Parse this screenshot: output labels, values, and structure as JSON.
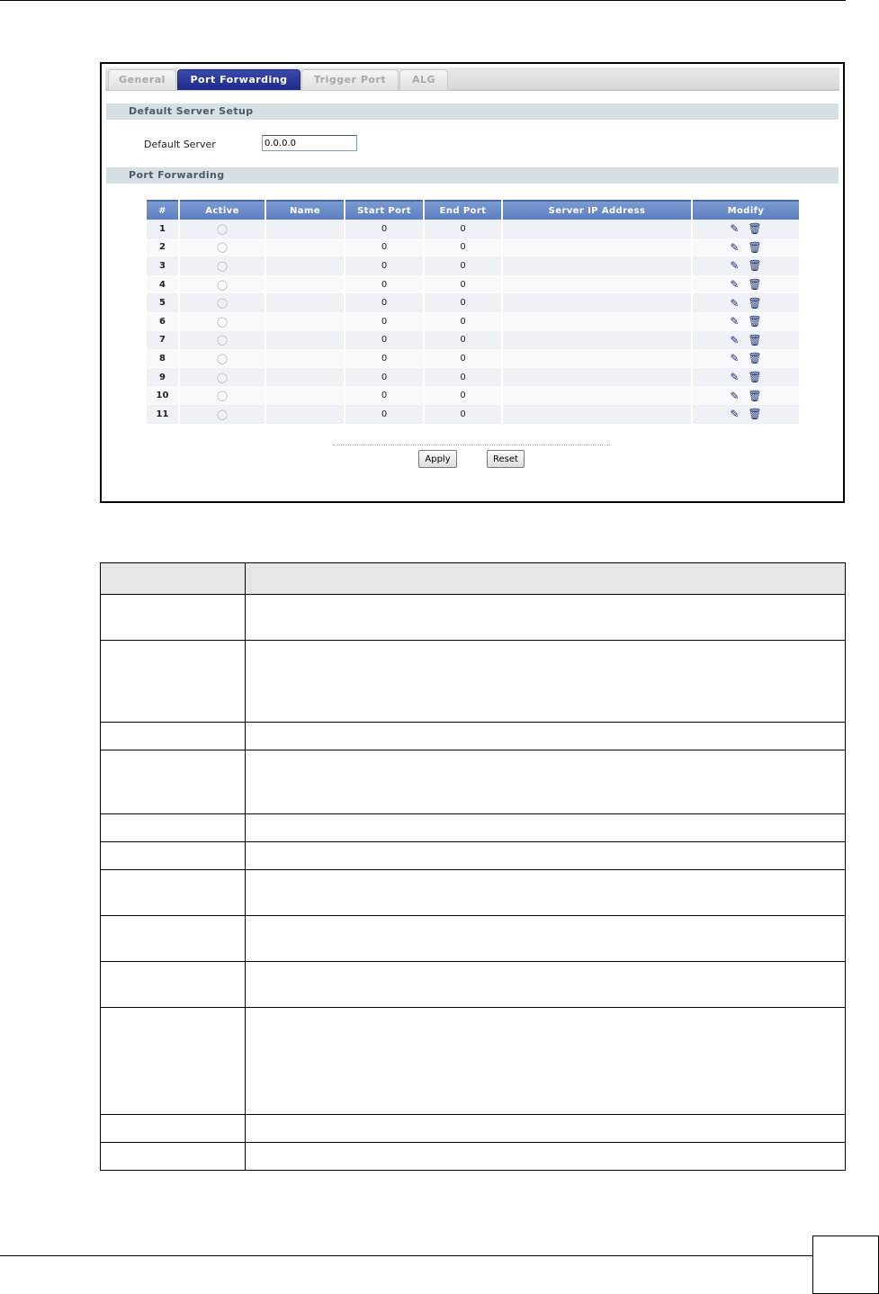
{
  "tabs": [
    "General",
    "Port Forwarding",
    "Trigger Port",
    "ALG"
  ],
  "active_tab": "Port Forwarding",
  "default_server_section": "Default Server Setup",
  "default_server_label": "Default Server",
  "default_server_value": "0.0.0.0",
  "port_forwarding_section": "Port Forwarding",
  "columns": [
    "#",
    "Active",
    "Name",
    "Start Port",
    "End Port",
    "Server IP Address",
    "Modify"
  ],
  "rows": [
    {
      "num": "1",
      "active": false,
      "name": "",
      "start": "0",
      "end": "0",
      "ip": ""
    },
    {
      "num": "2",
      "active": false,
      "name": "",
      "start": "0",
      "end": "0",
      "ip": ""
    },
    {
      "num": "3",
      "active": false,
      "name": "",
      "start": "0",
      "end": "0",
      "ip": ""
    },
    {
      "num": "4",
      "active": false,
      "name": "",
      "start": "0",
      "end": "0",
      "ip": ""
    },
    {
      "num": "5",
      "active": false,
      "name": "",
      "start": "0",
      "end": "0",
      "ip": ""
    },
    {
      "num": "6",
      "active": false,
      "name": "",
      "start": "0",
      "end": "0",
      "ip": ""
    },
    {
      "num": "7",
      "active": false,
      "name": "",
      "start": "0",
      "end": "0",
      "ip": ""
    },
    {
      "num": "8",
      "active": false,
      "name": "",
      "start": "0",
      "end": "0",
      "ip": ""
    },
    {
      "num": "9",
      "active": false,
      "name": "",
      "start": "0",
      "end": "0",
      "ip": ""
    },
    {
      "num": "10",
      "active": false,
      "name": "",
      "start": "0",
      "end": "0",
      "ip": ""
    },
    {
      "num": "11",
      "active": false,
      "name": "",
      "start": "0",
      "end": "0",
      "ip": ""
    }
  ],
  "icons": {
    "active": "lightbulb-icon",
    "edit": "edit-icon",
    "delete": "trash-icon"
  },
  "buttons": {
    "apply": "Apply",
    "reset": "Reset"
  },
  "colors": {
    "active_tab": "#1d2a8a",
    "table_header": "#6a8cc8",
    "section_bar": "#d6dfe4"
  }
}
